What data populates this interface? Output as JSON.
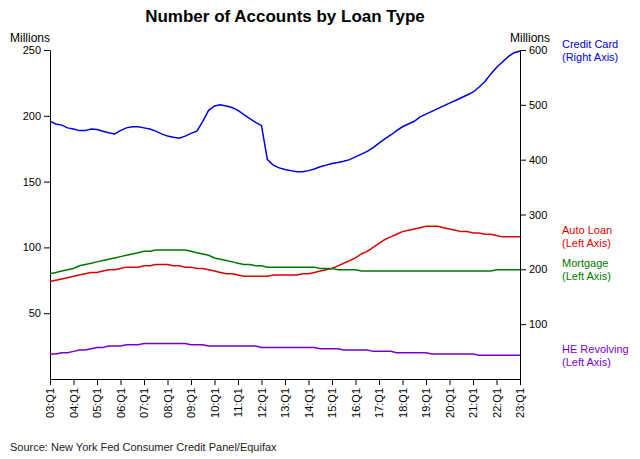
{
  "chart_data": {
    "type": "line",
    "title": "Number of Accounts by Loan Type",
    "ylabel": "Millions",
    "y2label": "Millions",
    "source": "Source: New York Fed Consumer Credit Panel/Equifax",
    "categories": [
      "03:Q1",
      null,
      null,
      null,
      "04:Q1",
      null,
      null,
      null,
      "05:Q1",
      null,
      null,
      null,
      "06:Q1",
      null,
      null,
      null,
      "07:Q1",
      null,
      null,
      null,
      "08:Q1",
      null,
      null,
      null,
      "09:Q1",
      null,
      null,
      null,
      "10:Q1",
      null,
      null,
      null,
      "11:Q1",
      null,
      null,
      null,
      "12:Q1",
      null,
      null,
      null,
      "13:Q1",
      null,
      null,
      null,
      "14:Q1",
      null,
      null,
      null,
      "15:Q1",
      null,
      null,
      null,
      "16:Q1",
      null,
      null,
      null,
      "17:Q1",
      null,
      null,
      null,
      "18:Q1",
      null,
      null,
      null,
      "19:Q1",
      null,
      null,
      null,
      "20:Q1",
      null,
      null,
      null,
      "21:Q1",
      null,
      null,
      null,
      "22:Q1",
      null,
      null,
      null,
      "23:Q1"
    ],
    "ylim": [
      0,
      250
    ],
    "yticks": [
      50,
      100,
      150,
      200,
      250
    ],
    "y2lim": [
      0,
      600
    ],
    "y2ticks": [
      100,
      200,
      300,
      400,
      500,
      600
    ],
    "grid": false,
    "series": [
      {
        "name": "Credit Card\n(Right Axis)",
        "axis": "y2",
        "color": "#0000dd",
        "values": [
          470,
          465,
          463,
          458,
          456,
          453,
          453,
          456,
          455,
          452,
          449,
          447,
          453,
          458,
          460,
          460,
          458,
          456,
          452,
          447,
          443,
          441,
          439,
          443,
          448,
          452,
          470,
          490,
          498,
          500,
          498,
          495,
          490,
          482,
          475,
          468,
          462,
          400,
          390,
          385,
          382,
          380,
          378,
          378,
          380,
          383,
          387,
          390,
          393,
          395,
          397,
          400,
          405,
          410,
          415,
          422,
          430,
          438,
          445,
          453,
          460,
          465,
          470,
          478,
          483,
          488,
          493,
          498,
          503,
          508,
          513,
          518,
          523,
          532,
          542,
          556,
          568,
          578,
          588,
          595,
          598
        ]
      },
      {
        "name": "Auto Loan\n(Left Axis)",
        "color": "#dd0000",
        "values": [
          74,
          75,
          76,
          77,
          78,
          79,
          80,
          81,
          81,
          82,
          83,
          83,
          84,
          85,
          85,
          85,
          86,
          86,
          87,
          87,
          87,
          86,
          86,
          85,
          85,
          84,
          84,
          83,
          82,
          81,
          80,
          80,
          79,
          78,
          78,
          78,
          78,
          78,
          79,
          79,
          79,
          79,
          79,
          80,
          80,
          81,
          82,
          83,
          84,
          86,
          88,
          90,
          92,
          95,
          97,
          100,
          103,
          106,
          108,
          110,
          112,
          113,
          114,
          115,
          116,
          116,
          116,
          115,
          114,
          113,
          112,
          112,
          111,
          111,
          110,
          110,
          109,
          108,
          108,
          108,
          108
        ]
      },
      {
        "name": "Mortgage\n(Left Axis)",
        "color": "#007700",
        "values": [
          80,
          81,
          82,
          83,
          84,
          86,
          87,
          88,
          89,
          90,
          91,
          92,
          93,
          94,
          95,
          96,
          97,
          97,
          98,
          98,
          98,
          98,
          98,
          98,
          97,
          96,
          95,
          94,
          92,
          91,
          90,
          89,
          88,
          87,
          87,
          86,
          86,
          85,
          85,
          85,
          85,
          85,
          85,
          85,
          85,
          85,
          84,
          84,
          84,
          83,
          83,
          83,
          83,
          82,
          82,
          82,
          82,
          82,
          82,
          82,
          82,
          82,
          82,
          82,
          82,
          82,
          82,
          82,
          82,
          82,
          82,
          82,
          82,
          82,
          82,
          82,
          83,
          83,
          83,
          83,
          83
        ]
      },
      {
        "name": "HE Revolving\n(Left Axis)",
        "color": "#7700cc",
        "values": [
          19,
          19,
          20,
          20,
          21,
          22,
          22,
          23,
          24,
          24,
          25,
          25,
          25,
          26,
          26,
          26,
          27,
          27,
          27,
          27,
          27,
          27,
          27,
          27,
          26,
          26,
          26,
          25,
          25,
          25,
          25,
          25,
          25,
          25,
          25,
          25,
          24,
          24,
          24,
          24,
          24,
          24,
          24,
          24,
          24,
          24,
          23,
          23,
          23,
          23,
          22,
          22,
          22,
          22,
          22,
          21,
          21,
          21,
          21,
          20,
          20,
          20,
          20,
          20,
          20,
          19,
          19,
          19,
          19,
          19,
          19,
          19,
          19,
          18,
          18,
          18,
          18,
          18,
          18,
          18,
          18
        ]
      }
    ]
  }
}
